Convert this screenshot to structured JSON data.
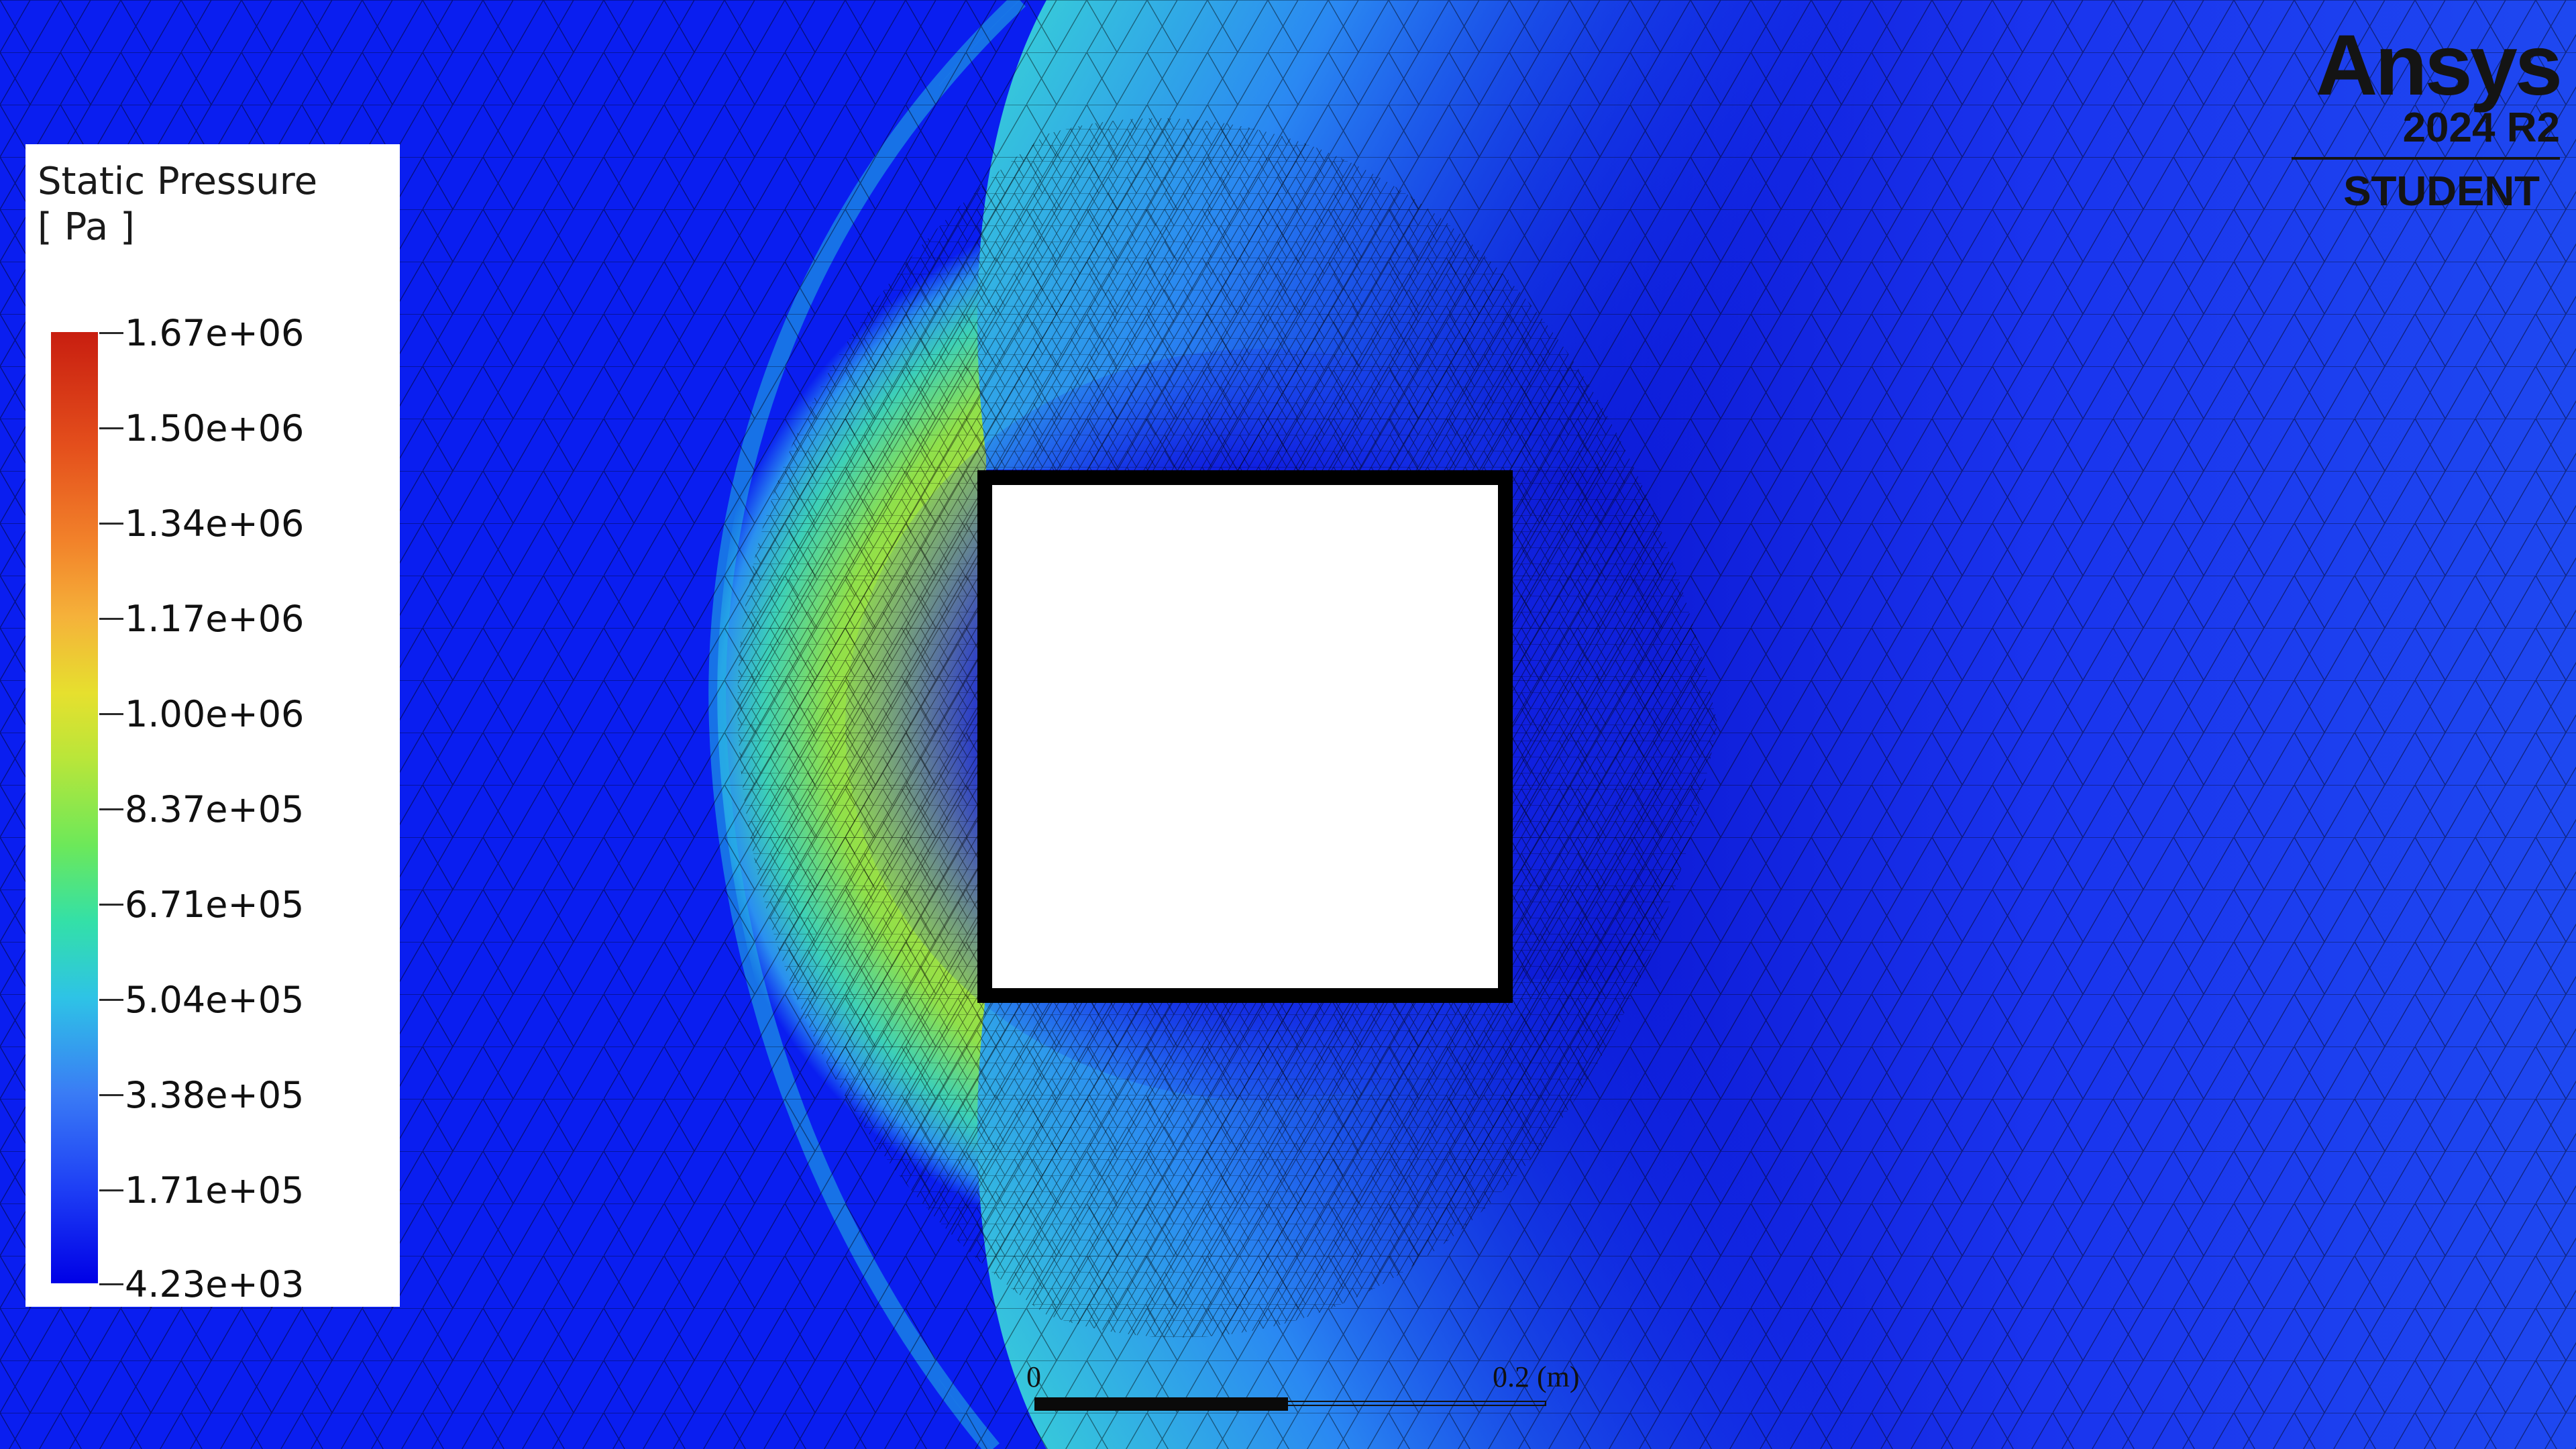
{
  "legend": {
    "title": "Static Pressure",
    "unit": "[ Pa ]",
    "labels": [
      "1.67e+06",
      "1.50e+06",
      "1.34e+06",
      "1.17e+06",
      "1.00e+06",
      "8.37e+05",
      "6.71e+05",
      "5.04e+05",
      "3.38e+05",
      "1.71e+05",
      "4.23e+03"
    ],
    "colormap": [
      "#0000e6",
      "#1e3ff5",
      "#3a7cf5",
      "#2ec3e6",
      "#33e0a8",
      "#6ce85a",
      "#b8e63a",
      "#e6e02e",
      "#f5b23a",
      "#f2822a",
      "#e44f1c",
      "#c81e10"
    ]
  },
  "logo": {
    "brand": "Ansys",
    "version": "2024 R2",
    "edition": "STUDENT"
  },
  "scale": {
    "start_label": "0",
    "end_label": "0.2 (m)"
  },
  "field_colors": {
    "freestream": "#0a1ef0",
    "shock_cyan": "#33c8d8",
    "shock_green": "#8fe04a",
    "stagnation_yellow": "#c8e030",
    "wake": "#1428d8",
    "body": "#ffffff",
    "body_outline": "#000000",
    "mesh_lines": "#000000"
  }
}
